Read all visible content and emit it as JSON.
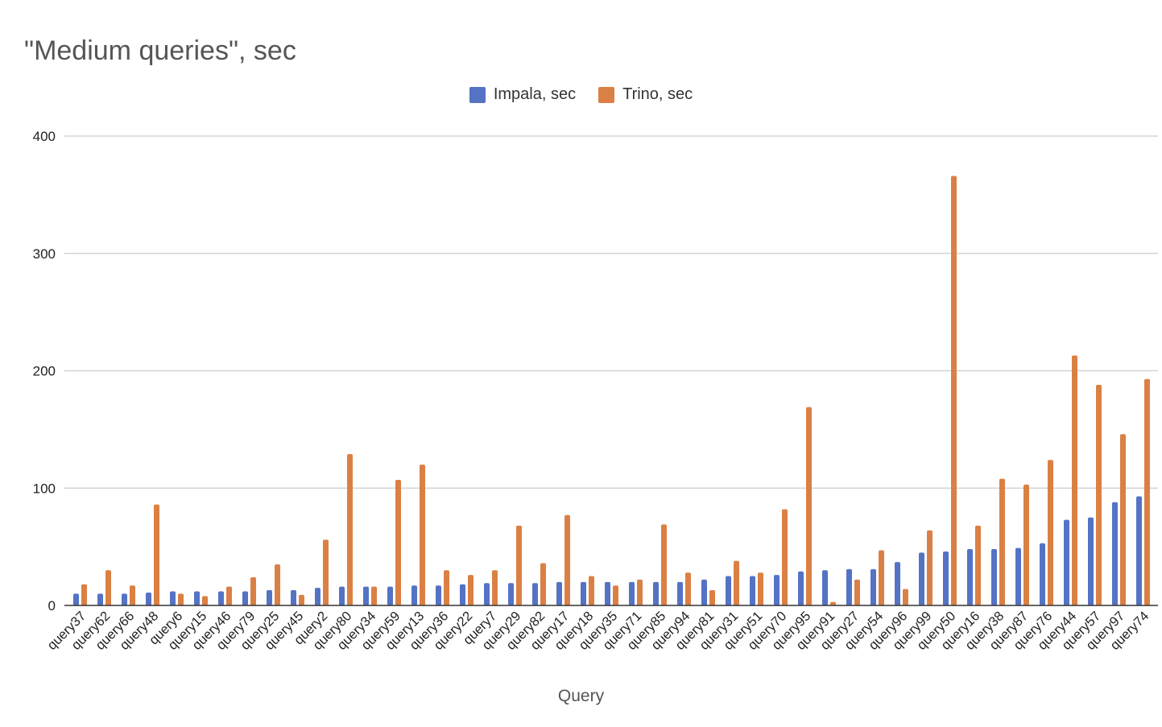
{
  "chart_data": {
    "type": "bar",
    "title": "\"Medium queries\", sec",
    "xlabel": "Query",
    "ylabel": "",
    "ylim": [
      0,
      400
    ],
    "yticks": [
      0,
      100,
      200,
      300,
      400
    ],
    "grid": true,
    "legend_position": "top",
    "categories": [
      "query37",
      "query62",
      "query66",
      "query48",
      "query6",
      "query15",
      "query46",
      "query79",
      "query25",
      "query45",
      "query2",
      "query80",
      "query34",
      "query59",
      "query13",
      "query36",
      "query22",
      "query7",
      "query29",
      "query82",
      "query17",
      "query18",
      "query35",
      "query71",
      "query85",
      "query94",
      "query81",
      "query31",
      "query51",
      "query70",
      "query95",
      "query91",
      "query27",
      "query54",
      "query96",
      "query99",
      "query50",
      "query16",
      "query38",
      "query87",
      "query76",
      "query44",
      "query57",
      "query97",
      "query74"
    ],
    "series": [
      {
        "name": "Impala, sec",
        "color": "#5573c4",
        "values": [
          10,
          10,
          10,
          11,
          12,
          12,
          12,
          12,
          13,
          13,
          15,
          16,
          16,
          16,
          17,
          17,
          18,
          19,
          19,
          19,
          20,
          20,
          20,
          20,
          20,
          20,
          22,
          25,
          25,
          26,
          29,
          30,
          31,
          31,
          37,
          45,
          46,
          48,
          48,
          49,
          53,
          73,
          75,
          88,
          93
        ]
      },
      {
        "name": "Trino, sec",
        "color": "#db8045",
        "values": [
          18,
          30,
          17,
          86,
          10,
          8,
          16,
          24,
          35,
          9,
          56,
          129,
          16,
          107,
          120,
          30,
          26,
          30,
          68,
          36,
          77,
          25,
          17,
          22,
          69,
          28,
          13,
          38,
          28,
          82,
          169,
          3,
          22,
          47,
          14,
          64,
          366,
          68,
          108,
          103,
          124,
          213,
          188,
          146,
          193
        ]
      }
    ]
  }
}
